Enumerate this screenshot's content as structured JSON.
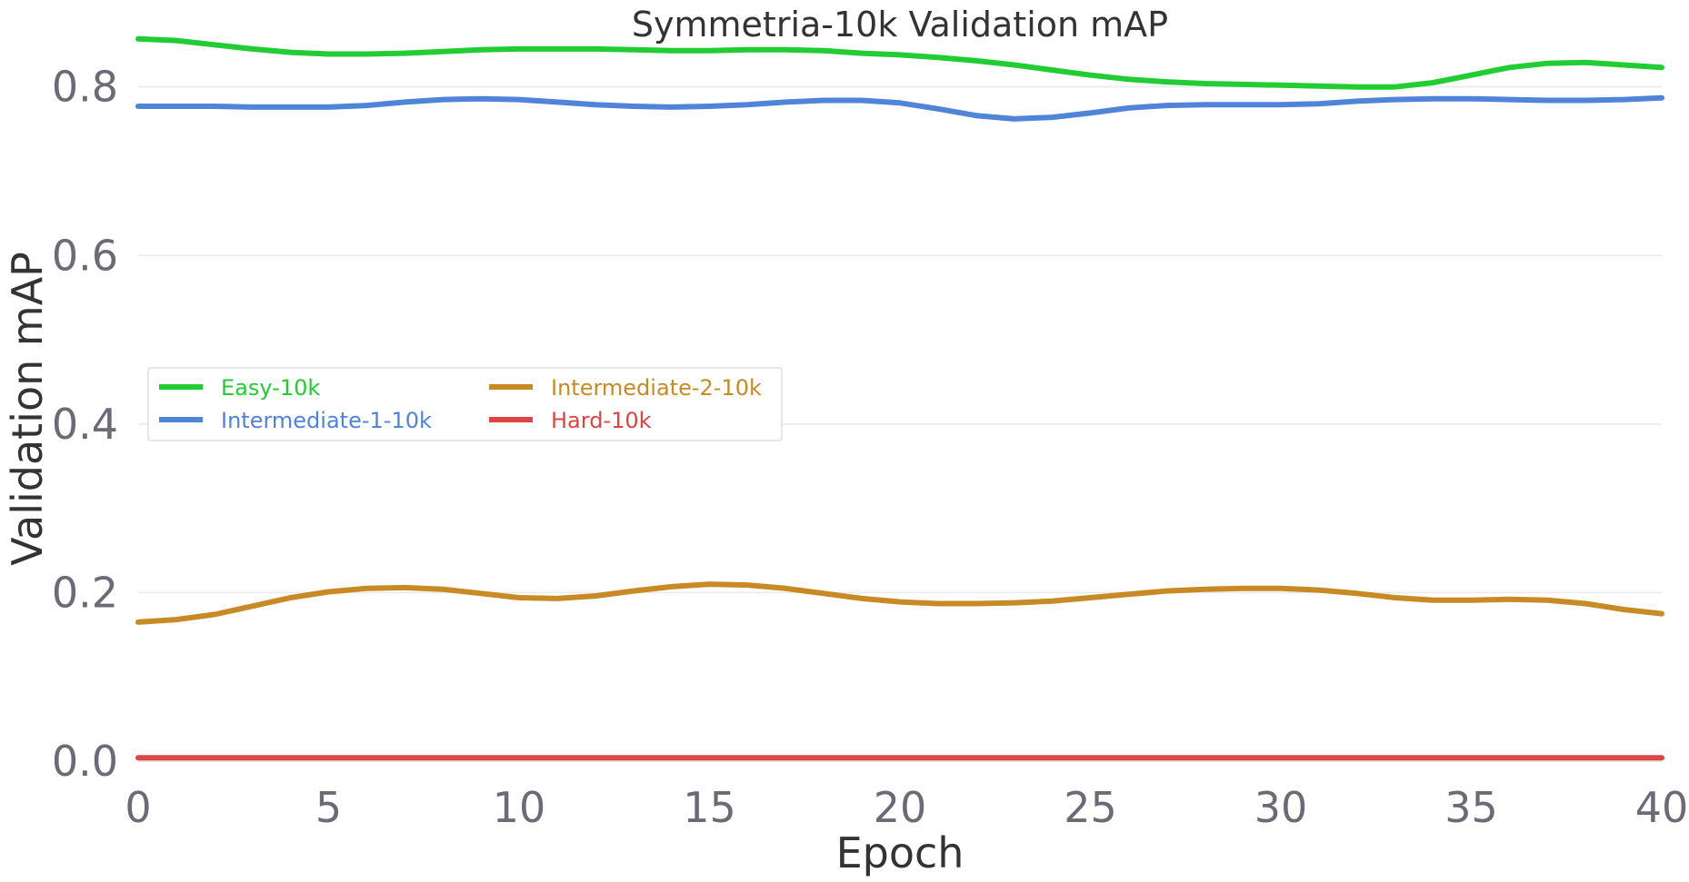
{
  "chart_data": {
    "type": "line",
    "title": "Symmetria-10k Validation mAP",
    "xlabel": "Epoch",
    "ylabel": "Validation mAP",
    "xlim": [
      0,
      40
    ],
    "ylim": [
      0.0,
      0.86
    ],
    "xticks": [
      0,
      5,
      10,
      15,
      20,
      25,
      30,
      35,
      40
    ],
    "yticks": [
      0.0,
      0.2,
      0.4,
      0.6,
      0.8
    ],
    "xtick_labels": [
      "0",
      "5",
      "10",
      "15",
      "20",
      "25",
      "30",
      "35",
      "40"
    ],
    "ytick_labels": [
      "0.0",
      "0.2",
      "0.4",
      "0.6",
      "0.8"
    ],
    "grid": "horizontal",
    "legend_position": "center-left",
    "x": [
      0,
      1,
      2,
      3,
      4,
      5,
      6,
      7,
      8,
      9,
      10,
      11,
      12,
      13,
      14,
      15,
      16,
      17,
      18,
      19,
      20,
      21,
      22,
      23,
      24,
      25,
      26,
      27,
      28,
      29,
      30,
      31,
      32,
      33,
      34,
      35,
      36,
      37,
      38,
      39,
      40
    ],
    "series": [
      {
        "name": "Easy-10k",
        "color": "#22cc33",
        "values": [
          0.857,
          0.855,
          0.85,
          0.845,
          0.841,
          0.839,
          0.839,
          0.84,
          0.842,
          0.844,
          0.845,
          0.845,
          0.845,
          0.844,
          0.843,
          0.843,
          0.844,
          0.844,
          0.843,
          0.84,
          0.838,
          0.835,
          0.831,
          0.826,
          0.82,
          0.814,
          0.809,
          0.806,
          0.804,
          0.803,
          0.802,
          0.801,
          0.8,
          0.8,
          0.805,
          0.814,
          0.823,
          0.828,
          0.829,
          0.826,
          0.823
        ]
      },
      {
        "name": "Intermediate-1-10k",
        "color": "#4f84d9",
        "values": [
          0.777,
          0.777,
          0.777,
          0.776,
          0.776,
          0.776,
          0.778,
          0.782,
          0.785,
          0.786,
          0.785,
          0.782,
          0.779,
          0.777,
          0.776,
          0.777,
          0.779,
          0.782,
          0.784,
          0.784,
          0.781,
          0.774,
          0.766,
          0.762,
          0.764,
          0.769,
          0.775,
          0.778,
          0.779,
          0.779,
          0.779,
          0.78,
          0.783,
          0.785,
          0.786,
          0.786,
          0.785,
          0.784,
          0.784,
          0.785,
          0.787
        ]
      },
      {
        "name": "Intermediate-2-10k",
        "color": "#c88a24",
        "values": [
          0.165,
          0.168,
          0.174,
          0.184,
          0.194,
          0.201,
          0.205,
          0.206,
          0.204,
          0.199,
          0.194,
          0.193,
          0.196,
          0.202,
          0.207,
          0.21,
          0.209,
          0.205,
          0.199,
          0.193,
          0.189,
          0.187,
          0.187,
          0.188,
          0.19,
          0.194,
          0.198,
          0.202,
          0.204,
          0.205,
          0.205,
          0.203,
          0.199,
          0.194,
          0.191,
          0.191,
          0.192,
          0.191,
          0.187,
          0.18,
          0.175
        ]
      },
      {
        "name": "Hard-10k",
        "color": "#dd4444",
        "values": [
          0.004,
          0.004,
          0.004,
          0.004,
          0.004,
          0.004,
          0.004,
          0.004,
          0.004,
          0.004,
          0.004,
          0.004,
          0.004,
          0.004,
          0.004,
          0.004,
          0.004,
          0.004,
          0.004,
          0.004,
          0.004,
          0.004,
          0.004,
          0.004,
          0.004,
          0.004,
          0.004,
          0.004,
          0.004,
          0.004,
          0.004,
          0.004,
          0.004,
          0.004,
          0.004,
          0.004,
          0.004,
          0.004,
          0.004,
          0.004,
          0.004
        ]
      }
    ],
    "colors": {
      "grid": "#eaeaea",
      "axis": "#dddddd",
      "legend_border": "#dddddd"
    }
  }
}
